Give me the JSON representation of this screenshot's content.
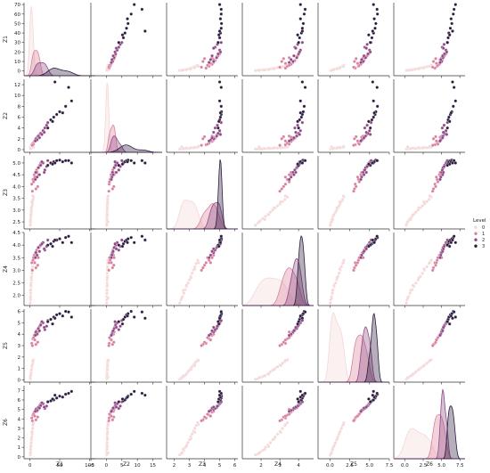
{
  "chart_data": {
    "type": "scatter",
    "subtype": "pairplot",
    "variables": [
      "Z1",
      "Z2",
      "Z3",
      "Z4",
      "Z5",
      "Z6"
    ],
    "hue": "Level",
    "legend": {
      "title": "Level",
      "placement": "right",
      "entries": [
        {
          "label": "0",
          "color": "#f4d7d7"
        },
        {
          "label": "1",
          "color": "#d9819c"
        },
        {
          "label": "2",
          "color": "#8f4a86"
        },
        {
          "label": "3",
          "color": "#2c1b3e"
        }
      ]
    },
    "diagonal": "kde",
    "axes": {
      "Z1": {
        "range": [
          -10,
          110
        ],
        "ticks": [
          0,
          50,
          100
        ],
        "tick_labels": [
          "0",
          "50",
          "100"
        ],
        "label": "Z1"
      },
      "Z2": {
        "range": [
          -5,
          18
        ],
        "ticks": [
          -5,
          0,
          5,
          10,
          15
        ],
        "tick_labels": [
          "−5",
          "0",
          "5",
          "10",
          "15"
        ],
        "label": "Z2"
      },
      "Z3": {
        "range": [
          1.5,
          6.2
        ],
        "ticks": [
          2,
          3,
          4,
          5,
          6
        ],
        "tick_labels": [
          "2",
          "3",
          "4",
          "5",
          "6"
        ],
        "label": "Z3"
      },
      "Z4": {
        "range": [
          1.0,
          4.8
        ],
        "ticks": [
          2,
          3,
          4
        ],
        "tick_labels": [
          "2",
          "3",
          "4"
        ],
        "label": "Z4"
      },
      "Z5": {
        "range": [
          -1.5,
          7.5
        ],
        "ticks": [
          0,
          2.5,
          5.0,
          7.5
        ],
        "tick_labels": [
          "0.0",
          "2.5",
          "5.0",
          "7.5"
        ],
        "label": "Z5"
      },
      "Z6": {
        "range": [
          -1.5,
          8.2
        ],
        "ticks": [
          0,
          2.5,
          5.0,
          7.5
        ],
        "tick_labels": [
          "0.0",
          "2.5",
          "5.0",
          "7.5"
        ],
        "label": "Z6"
      }
    },
    "row_axes": {
      "Z1": {
        "range": [
          -5,
          72
        ],
        "ticks": [
          0,
          10,
          20,
          30,
          40,
          50,
          60,
          70
        ],
        "tick_labels": [
          "0",
          "10",
          "20",
          "30",
          "40",
          "50",
          "60",
          "70"
        ]
      },
      "Z2": {
        "range": [
          -0.5,
          13
        ],
        "ticks": [
          0,
          2,
          4,
          6,
          8,
          10,
          12
        ],
        "tick_labels": [
          "0",
          "2",
          "4",
          "6",
          "8",
          "10",
          "12"
        ]
      },
      "Z3": {
        "range": [
          2.2,
          5.3
        ],
        "ticks": [
          2.5,
          3.0,
          3.5,
          4.0,
          4.5,
          5.0
        ],
        "tick_labels": [
          "2.5",
          "3.0",
          "3.5",
          "4.0",
          "4.5",
          "5.0"
        ]
      },
      "Z4": {
        "range": [
          1.6,
          4.5
        ],
        "ticks": [
          2.0,
          2.5,
          3.0,
          3.5,
          4.0,
          4.5
        ],
        "tick_labels": [
          "2.0",
          "2.5",
          "3.0",
          "3.5",
          "4.0",
          "4.5"
        ]
      },
      "Z5": {
        "range": [
          -0.2,
          6.2
        ],
        "ticks": [
          0,
          1,
          2,
          3,
          4,
          5,
          6
        ],
        "tick_labels": [
          "0",
          "1",
          "2",
          "3",
          "4",
          "5",
          "6"
        ]
      },
      "Z6": {
        "range": [
          -0.2,
          7.5
        ],
        "ticks": [
          0,
          1,
          2,
          3,
          4,
          5,
          6,
          7
        ],
        "tick_labels": [
          "0",
          "1",
          "2",
          "3",
          "4",
          "5",
          "6",
          "7"
        ]
      }
    },
    "points": [
      [
        0.5,
        0.1,
        2.36,
        1.7,
        0.05,
        0.2,
        0
      ],
      [
        0.8,
        0.12,
        2.45,
        1.83,
        0.1,
        0.3,
        0
      ],
      [
        1.0,
        0.14,
        2.55,
        1.96,
        0.2,
        0.5,
        0
      ],
      [
        1.2,
        0.16,
        2.64,
        2.09,
        0.3,
        0.7,
        0
      ],
      [
        1.5,
        0.18,
        2.73,
        2.23,
        0.4,
        1.0,
        0
      ],
      [
        1.8,
        0.2,
        2.82,
        2.36,
        0.55,
        1.25,
        0
      ],
      [
        2.0,
        0.22,
        2.91,
        2.49,
        0.7,
        1.5,
        0
      ],
      [
        2.5,
        0.25,
        3.0,
        2.62,
        0.85,
        1.8,
        0
      ],
      [
        3.0,
        0.28,
        3.09,
        2.75,
        1.0,
        2.1,
        0
      ],
      [
        3.5,
        0.3,
        3.18,
        2.88,
        1.15,
        2.4,
        0
      ],
      [
        4.0,
        0.33,
        3.27,
        3.01,
        1.3,
        2.7,
        0
      ],
      [
        4.5,
        0.36,
        3.36,
        3.14,
        1.45,
        3.0,
        0
      ],
      [
        5.0,
        0.4,
        3.45,
        3.27,
        1.6,
        3.3,
        0
      ],
      [
        6.0,
        0.45,
        3.55,
        3.4,
        1.75,
        3.6,
        0
      ],
      [
        0.6,
        0.5,
        2.5,
        1.9,
        0.2,
        0.4,
        0
      ],
      [
        1.4,
        0.3,
        2.8,
        2.4,
        0.5,
        1.1,
        0
      ],
      [
        2.2,
        0.35,
        3.1,
        2.7,
        0.9,
        1.9,
        0
      ],
      [
        3.2,
        0.42,
        3.35,
        3.05,
        1.25,
        2.6,
        0
      ],
      [
        0.9,
        0.2,
        2.6,
        2.2,
        0.35,
        0.8,
        0
      ],
      [
        4.8,
        0.6,
        3.6,
        3.3,
        1.7,
        3.4,
        0
      ],
      [
        3,
        0.9,
        4.1,
        3.3,
        3.2,
        4.1,
        1
      ],
      [
        5,
        1.2,
        4.3,
        3.4,
        3.6,
        4.4,
        1
      ],
      [
        7,
        1.5,
        4.5,
        3.6,
        3.9,
        4.7,
        1
      ],
      [
        9,
        1.8,
        4.6,
        3.7,
        4.1,
        4.9,
        1
      ],
      [
        11,
        2.1,
        4.7,
        3.8,
        4.3,
        5.1,
        1
      ],
      [
        13,
        2.4,
        4.0,
        3.2,
        3.3,
        4.2,
        1
      ],
      [
        15,
        2.7,
        4.8,
        3.9,
        4.6,
        5.3,
        1
      ],
      [
        6,
        1.0,
        4.2,
        3.5,
        3.7,
        4.5,
        1
      ],
      [
        8,
        1.6,
        4.4,
        3.3,
        3.5,
        4.3,
        1
      ],
      [
        10,
        2.0,
        3.9,
        3.1,
        3.1,
        3.9,
        1
      ],
      [
        12,
        2.3,
        4.6,
        3.6,
        4.0,
        4.8,
        1
      ],
      [
        4,
        0.8,
        3.8,
        3.0,
        3.0,
        3.8,
        1
      ],
      [
        16,
        2.8,
        4.9,
        3.95,
        4.7,
        5.4,
        1
      ],
      [
        14,
        2.5,
        4.5,
        3.5,
        4.2,
        5.0,
        1
      ],
      [
        18,
        3.0,
        5.0,
        4.0,
        4.9,
        5.6,
        1
      ],
      [
        10,
        2.0,
        4.6,
        3.7,
        4.2,
        5.0,
        2
      ],
      [
        14,
        2.5,
        4.8,
        3.9,
        4.5,
        5.2,
        2
      ],
      [
        18,
        3.0,
        4.9,
        4.0,
        4.8,
        5.4,
        2
      ],
      [
        22,
        3.5,
        5.0,
        4.1,
        5.0,
        5.6,
        2
      ],
      [
        25,
        4.0,
        4.7,
        3.8,
        4.4,
        5.1,
        2
      ],
      [
        12,
        1.8,
        4.4,
        3.6,
        4.0,
        4.9,
        2
      ],
      [
        16,
        2.2,
        4.5,
        3.75,
        4.3,
        5.15,
        2
      ],
      [
        20,
        2.8,
        5.05,
        4.05,
        5.1,
        5.7,
        2
      ],
      [
        28,
        4.5,
        4.85,
        3.95,
        4.7,
        5.35,
        2
      ],
      [
        30,
        5.0,
        5.1,
        4.2,
        5.2,
        5.8,
        2
      ],
      [
        9,
        1.6,
        4.3,
        3.5,
        3.9,
        4.8,
        2
      ],
      [
        24,
        3.2,
        4.6,
        3.85,
        4.6,
        5.25,
        2
      ],
      [
        35,
        5.5,
        5.0,
        4.05,
        5.3,
        5.9,
        3
      ],
      [
        40,
        6.0,
        5.05,
        4.15,
        5.5,
        6.0,
        3
      ],
      [
        45,
        6.5,
        5.1,
        4.2,
        5.7,
        6.2,
        3
      ],
      [
        50,
        7.0,
        5.12,
        4.25,
        5.8,
        6.4,
        3
      ],
      [
        60,
        8.0,
        5.1,
        4.3,
        6.0,
        6.6,
        3
      ],
      [
        70,
        9.0,
        5.0,
        4.1,
        5.5,
        6.9,
        3
      ],
      [
        30,
        4.0,
        4.9,
        4.0,
        5.1,
        5.8,
        3
      ],
      [
        38,
        5.2,
        4.95,
        3.95,
        4.9,
        6.1,
        3
      ],
      [
        55,
        6.8,
        5.05,
        4.1,
        5.6,
        6.3,
        3
      ],
      [
        65,
        11.5,
        5.1,
        4.35,
        5.95,
        6.7,
        3
      ],
      [
        42,
        12.5,
        5.0,
        4.2,
        5.4,
        6.5,
        3
      ]
    ]
  }
}
